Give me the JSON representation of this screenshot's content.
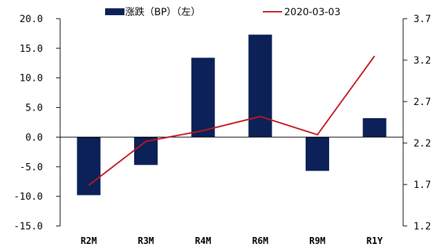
{
  "chart_data": {
    "type": "bar+line",
    "categories": [
      "R2M",
      "R3M",
      "R4M",
      "R6M",
      "R9M",
      "R1Y"
    ],
    "series": [
      {
        "name": "涨跌（BP）（左）",
        "type": "bar",
        "axis": "left",
        "color": "#0b2157",
        "values": [
          -9.8,
          -4.7,
          13.4,
          17.3,
          -5.7,
          3.2
        ]
      },
      {
        "name": "2020-03-03",
        "type": "line",
        "axis": "right",
        "color": "#c0151f",
        "values": [
          1.69,
          2.22,
          2.35,
          2.52,
          2.3,
          3.25
        ]
      }
    ],
    "left_axis": {
      "ylim": [
        -15,
        20
      ],
      "ticks": [
        20,
        15,
        10,
        5,
        0,
        -5,
        -10,
        -15
      ],
      "tick_labels": [
        "20.0",
        "15.0",
        "10.0",
        "5.0",
        "0.0",
        "-5.0",
        "-10.0",
        "-15.0"
      ]
    },
    "right_axis": {
      "ylim": [
        1.2,
        3.7
      ],
      "ticks": [
        3.7,
        3.2,
        2.7,
        2.2,
        1.7,
        1.2
      ],
      "tick_labels": [
        "3.7",
        "3.2",
        "2.7",
        "2.2",
        "1.7",
        "1.2"
      ]
    },
    "legend": "top-center",
    "grid": false
  }
}
